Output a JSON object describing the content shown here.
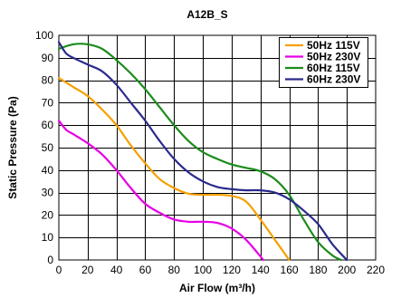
{
  "chart_data": {
    "type": "line",
    "title": "A12B_S",
    "xlabel": "Air Flow (m³/h)",
    "ylabel": "Static Pressure (Pa)",
    "xlim": [
      0,
      220
    ],
    "ylim": [
      0,
      100
    ],
    "xticks": [
      "0",
      "20",
      "40",
      "60",
      "80",
      "100",
      "120",
      "140",
      "160",
      "180",
      "200",
      "220"
    ],
    "yticks": [
      "0",
      "10",
      "20",
      "30",
      "40",
      "50",
      "60",
      "70",
      "80",
      "90",
      "100"
    ],
    "grid": true,
    "legend_position": "top-right",
    "series": [
      {
        "name": "50Hz 115V",
        "color": "#f5a000",
        "x": [
          0,
          10,
          20,
          30,
          40,
          50,
          60,
          70,
          80,
          90,
          100,
          110,
          120,
          130,
          140,
          150,
          160
        ],
        "y": [
          81,
          77,
          73,
          67,
          60,
          51,
          43,
          36,
          32,
          29.5,
          29,
          29,
          28.5,
          26,
          18,
          9,
          0
        ]
      },
      {
        "name": "50Hz 230V",
        "color": "#e600e6",
        "x": [
          0,
          5,
          10,
          20,
          30,
          40,
          50,
          60,
          70,
          80,
          90,
          100,
          110,
          120,
          130,
          142
        ],
        "y": [
          62,
          58,
          56,
          52,
          47,
          40,
          32,
          25,
          21,
          18,
          17,
          17,
          16.5,
          14,
          9,
          0
        ]
      },
      {
        "name": "60Hz 115V",
        "color": "#1c8c1c",
        "x": [
          0,
          10,
          20,
          30,
          40,
          50,
          60,
          70,
          80,
          90,
          100,
          110,
          120,
          130,
          140,
          150,
          160,
          170,
          180,
          190,
          196
        ],
        "y": [
          94,
          96,
          96,
          94,
          89,
          83,
          76,
          68,
          60,
          53,
          48,
          45,
          42.5,
          41,
          39.5,
          36,
          29,
          18,
          8,
          2,
          0
        ]
      },
      {
        "name": "60Hz 230V",
        "color": "#2a2a8c",
        "x": [
          0,
          5,
          10,
          20,
          30,
          40,
          50,
          60,
          70,
          80,
          90,
          100,
          110,
          120,
          130,
          140,
          150,
          160,
          170,
          180,
          190,
          200
        ],
        "y": [
          97,
          92,
          90,
          87,
          84,
          78,
          70,
          62,
          53,
          45,
          39,
          35,
          32.5,
          31.5,
          31,
          31,
          30,
          27,
          22,
          16,
          7,
          0
        ]
      }
    ]
  }
}
